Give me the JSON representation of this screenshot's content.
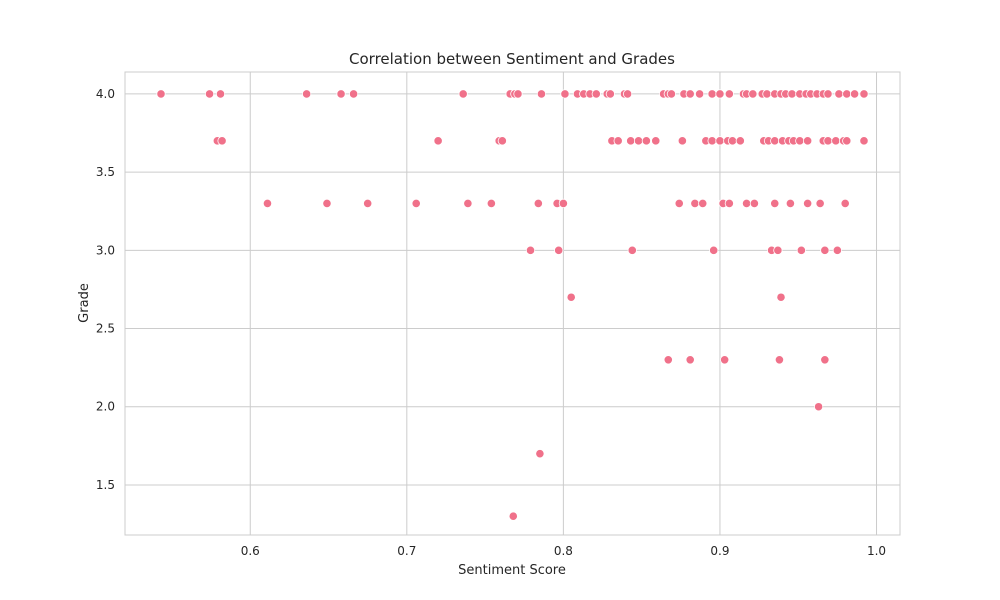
{
  "chart_data": {
    "type": "scatter",
    "title": "Correlation between Sentiment and Grades",
    "xlabel": "Sentiment Score",
    "ylabel": "Grade",
    "xlim": [
      0.52,
      1.015
    ],
    "ylim": [
      1.18,
      4.14
    ],
    "xticks": [
      0.6,
      0.7,
      0.8,
      0.9,
      1.0
    ],
    "xtick_labels": [
      "0.6",
      "0.7",
      "0.8",
      "0.9",
      "1.0"
    ],
    "yticks": [
      1.5,
      2.0,
      2.5,
      3.0,
      3.5,
      4.0
    ],
    "ytick_labels": [
      "1.5",
      "2.0",
      "2.5",
      "3.0",
      "3.5",
      "4.0"
    ],
    "grid": true,
    "colors": {
      "point": "#f0718a",
      "point_edge": "#ffffff",
      "grid": "#cccccc",
      "frame": "#cccccc",
      "text": "#262626"
    },
    "points": [
      {
        "x": 0.543,
        "y": 4.0
      },
      {
        "x": 0.574,
        "y": 4.0
      },
      {
        "x": 0.581,
        "y": 4.0
      },
      {
        "x": 0.636,
        "y": 4.0
      },
      {
        "x": 0.658,
        "y": 4.0
      },
      {
        "x": 0.666,
        "y": 4.0
      },
      {
        "x": 0.736,
        "y": 4.0
      },
      {
        "x": 0.766,
        "y": 4.0
      },
      {
        "x": 0.769,
        "y": 4.0
      },
      {
        "x": 0.771,
        "y": 4.0
      },
      {
        "x": 0.786,
        "y": 4.0
      },
      {
        "x": 0.801,
        "y": 4.0
      },
      {
        "x": 0.809,
        "y": 4.0
      },
      {
        "x": 0.813,
        "y": 4.0
      },
      {
        "x": 0.817,
        "y": 4.0
      },
      {
        "x": 0.821,
        "y": 4.0
      },
      {
        "x": 0.828,
        "y": 4.0
      },
      {
        "x": 0.83,
        "y": 4.0
      },
      {
        "x": 0.839,
        "y": 4.0
      },
      {
        "x": 0.841,
        "y": 4.0
      },
      {
        "x": 0.864,
        "y": 4.0
      },
      {
        "x": 0.867,
        "y": 4.0
      },
      {
        "x": 0.869,
        "y": 4.0
      },
      {
        "x": 0.877,
        "y": 4.0
      },
      {
        "x": 0.881,
        "y": 4.0
      },
      {
        "x": 0.887,
        "y": 4.0
      },
      {
        "x": 0.895,
        "y": 4.0
      },
      {
        "x": 0.9,
        "y": 4.0
      },
      {
        "x": 0.906,
        "y": 4.0
      },
      {
        "x": 0.915,
        "y": 4.0
      },
      {
        "x": 0.917,
        "y": 4.0
      },
      {
        "x": 0.921,
        "y": 4.0
      },
      {
        "x": 0.927,
        "y": 4.0
      },
      {
        "x": 0.93,
        "y": 4.0
      },
      {
        "x": 0.935,
        "y": 4.0
      },
      {
        "x": 0.939,
        "y": 4.0
      },
      {
        "x": 0.942,
        "y": 4.0
      },
      {
        "x": 0.946,
        "y": 4.0
      },
      {
        "x": 0.951,
        "y": 4.0
      },
      {
        "x": 0.955,
        "y": 4.0
      },
      {
        "x": 0.958,
        "y": 4.0
      },
      {
        "x": 0.962,
        "y": 4.0
      },
      {
        "x": 0.966,
        "y": 4.0
      },
      {
        "x": 0.969,
        "y": 4.0
      },
      {
        "x": 0.976,
        "y": 4.0
      },
      {
        "x": 0.981,
        "y": 4.0
      },
      {
        "x": 0.986,
        "y": 4.0
      },
      {
        "x": 0.992,
        "y": 4.0
      },
      {
        "x": 0.579,
        "y": 3.7
      },
      {
        "x": 0.582,
        "y": 3.7
      },
      {
        "x": 0.72,
        "y": 3.7
      },
      {
        "x": 0.759,
        "y": 3.7
      },
      {
        "x": 0.761,
        "y": 3.7
      },
      {
        "x": 0.831,
        "y": 3.7
      },
      {
        "x": 0.835,
        "y": 3.7
      },
      {
        "x": 0.843,
        "y": 3.7
      },
      {
        "x": 0.848,
        "y": 3.7
      },
      {
        "x": 0.853,
        "y": 3.7
      },
      {
        "x": 0.859,
        "y": 3.7
      },
      {
        "x": 0.876,
        "y": 3.7
      },
      {
        "x": 0.891,
        "y": 3.7
      },
      {
        "x": 0.895,
        "y": 3.7
      },
      {
        "x": 0.9,
        "y": 3.7
      },
      {
        "x": 0.905,
        "y": 3.7
      },
      {
        "x": 0.908,
        "y": 3.7
      },
      {
        "x": 0.913,
        "y": 3.7
      },
      {
        "x": 0.928,
        "y": 3.7
      },
      {
        "x": 0.931,
        "y": 3.7
      },
      {
        "x": 0.935,
        "y": 3.7
      },
      {
        "x": 0.94,
        "y": 3.7
      },
      {
        "x": 0.944,
        "y": 3.7
      },
      {
        "x": 0.947,
        "y": 3.7
      },
      {
        "x": 0.951,
        "y": 3.7
      },
      {
        "x": 0.956,
        "y": 3.7
      },
      {
        "x": 0.966,
        "y": 3.7
      },
      {
        "x": 0.969,
        "y": 3.7
      },
      {
        "x": 0.974,
        "y": 3.7
      },
      {
        "x": 0.979,
        "y": 3.7
      },
      {
        "x": 0.981,
        "y": 3.7
      },
      {
        "x": 0.992,
        "y": 3.7
      },
      {
        "x": 0.611,
        "y": 3.3
      },
      {
        "x": 0.649,
        "y": 3.3
      },
      {
        "x": 0.675,
        "y": 3.3
      },
      {
        "x": 0.706,
        "y": 3.3
      },
      {
        "x": 0.739,
        "y": 3.3
      },
      {
        "x": 0.754,
        "y": 3.3
      },
      {
        "x": 0.784,
        "y": 3.3
      },
      {
        "x": 0.796,
        "y": 3.3
      },
      {
        "x": 0.8,
        "y": 3.3
      },
      {
        "x": 0.874,
        "y": 3.3
      },
      {
        "x": 0.884,
        "y": 3.3
      },
      {
        "x": 0.889,
        "y": 3.3
      },
      {
        "x": 0.902,
        "y": 3.3
      },
      {
        "x": 0.906,
        "y": 3.3
      },
      {
        "x": 0.917,
        "y": 3.3
      },
      {
        "x": 0.922,
        "y": 3.3
      },
      {
        "x": 0.935,
        "y": 3.3
      },
      {
        "x": 0.945,
        "y": 3.3
      },
      {
        "x": 0.956,
        "y": 3.3
      },
      {
        "x": 0.964,
        "y": 3.3
      },
      {
        "x": 0.98,
        "y": 3.3
      },
      {
        "x": 0.779,
        "y": 3.0
      },
      {
        "x": 0.797,
        "y": 3.0
      },
      {
        "x": 0.844,
        "y": 3.0
      },
      {
        "x": 0.896,
        "y": 3.0
      },
      {
        "x": 0.933,
        "y": 3.0
      },
      {
        "x": 0.937,
        "y": 3.0
      },
      {
        "x": 0.952,
        "y": 3.0
      },
      {
        "x": 0.967,
        "y": 3.0
      },
      {
        "x": 0.975,
        "y": 3.0
      },
      {
        "x": 0.805,
        "y": 2.7
      },
      {
        "x": 0.939,
        "y": 2.7
      },
      {
        "x": 0.867,
        "y": 2.3
      },
      {
        "x": 0.881,
        "y": 2.3
      },
      {
        "x": 0.903,
        "y": 2.3
      },
      {
        "x": 0.938,
        "y": 2.3
      },
      {
        "x": 0.967,
        "y": 2.3
      },
      {
        "x": 0.963,
        "y": 2.0
      },
      {
        "x": 0.785,
        "y": 1.7
      },
      {
        "x": 0.768,
        "y": 1.3
      }
    ]
  }
}
